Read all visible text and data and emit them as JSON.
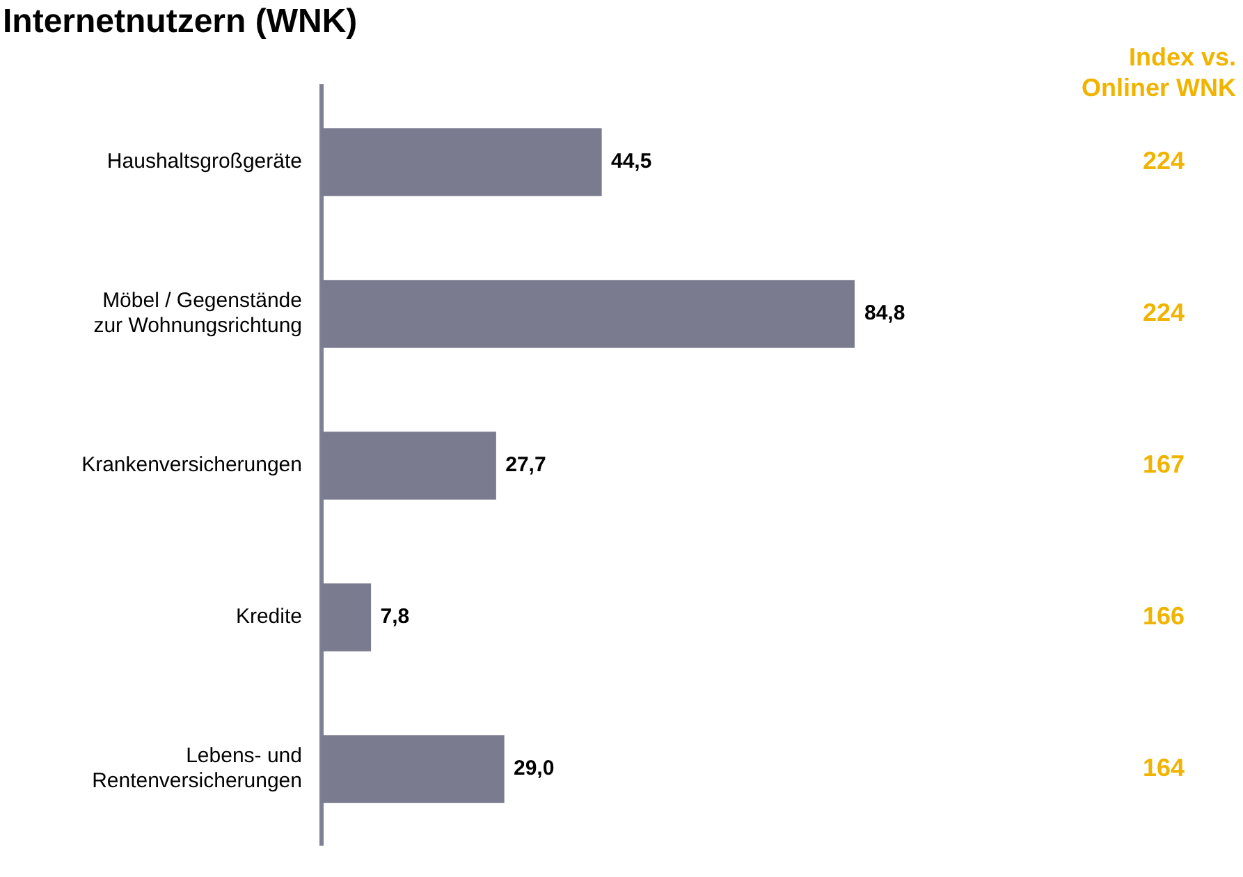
{
  "chart_data": {
    "type": "bar",
    "orientation": "horizontal",
    "title": "Internetnutzern (WNK)",
    "categories": [
      "Haushaltsgroßgeräte",
      "Möbel / Gegenstände zur Wohnungsrichtung",
      "Krankenversicherungen",
      "Kredite",
      "Lebens- und Rentenversicherungen"
    ],
    "values": [
      44.5,
      84.8,
      27.7,
      7.8,
      29.0
    ],
    "value_labels": [
      "44,5",
      "84,8",
      "27,7",
      "7,8",
      "29,0"
    ],
    "color": "#7b7b8f",
    "annotations": [
      "Index vs. Onliner WNK",
      "224",
      "224",
      "167",
      "166",
      "164"
    ],
    "grid": false,
    "legend": false
  }
}
